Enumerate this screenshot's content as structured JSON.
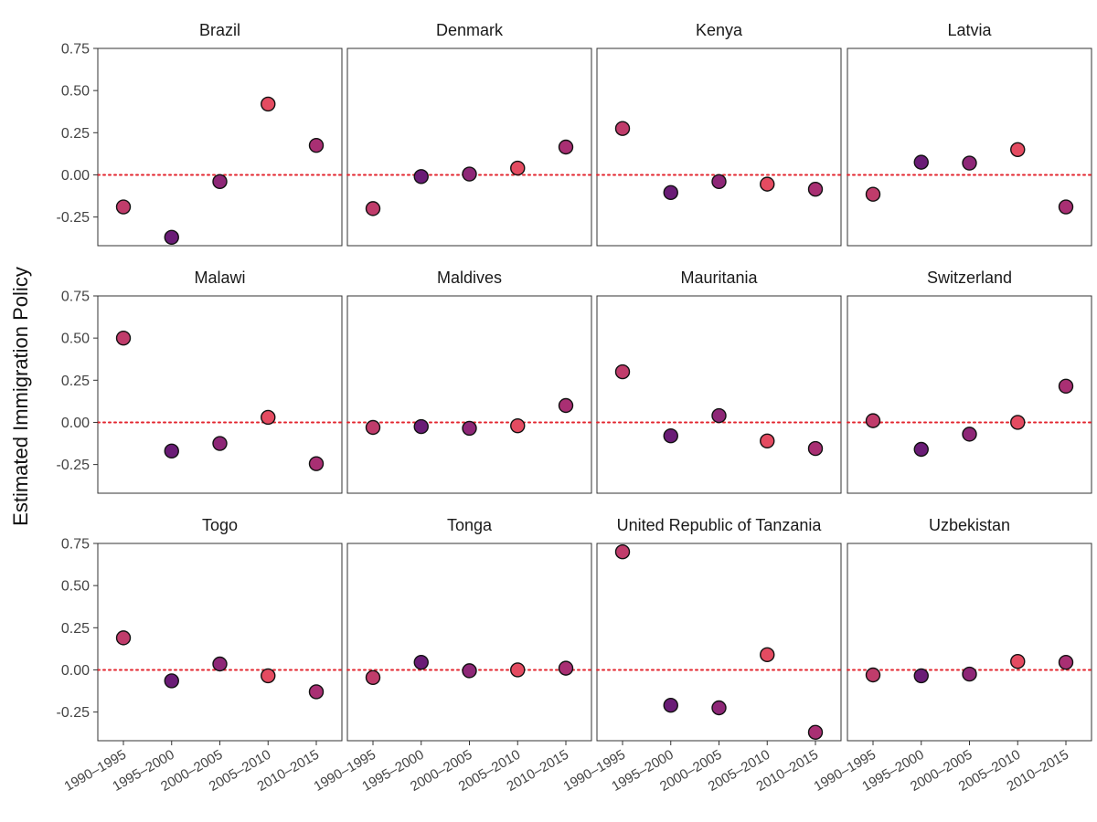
{
  "chart_data": {
    "type": "scatter",
    "ylabel": "Estimated Immigration Policy",
    "xlabel": "",
    "categories": [
      "1990–1995",
      "1995–2000",
      "2000–2005",
      "2005–2010",
      "2010–2015"
    ],
    "y_ticks": [
      0.75,
      0.5,
      0.25,
      0.0,
      -0.25
    ],
    "y_tick_labels": [
      "0.75",
      "0.50",
      "0.25",
      "0.00",
      "-0.25"
    ],
    "ylim": [
      -0.42,
      0.75
    ],
    "reference_line": {
      "y": 0,
      "style": "dotted",
      "color": "#e3262f"
    },
    "grid": false,
    "layout": {
      "rows": 3,
      "cols": 4
    },
    "point_colors": [
      "#c03c6b",
      "#6a1c76",
      "#8e2777",
      "#e44b61",
      "#a92f73"
    ],
    "panels": [
      {
        "title": "Brazil",
        "values": [
          -0.19,
          -0.37,
          -0.04,
          0.42,
          0.175
        ]
      },
      {
        "title": "Denmark",
        "values": [
          -0.2,
          -0.01,
          0.005,
          0.04,
          0.165
        ]
      },
      {
        "title": "Kenya",
        "values": [
          0.275,
          -0.105,
          -0.04,
          -0.055,
          -0.085
        ]
      },
      {
        "title": "Latvia",
        "values": [
          -0.115,
          0.075,
          0.07,
          0.15,
          -0.19
        ]
      },
      {
        "title": "Malawi",
        "values": [
          0.5,
          -0.17,
          -0.125,
          0.03,
          -0.245
        ]
      },
      {
        "title": "Maldives",
        "values": [
          -0.03,
          -0.025,
          -0.035,
          -0.02,
          0.1
        ]
      },
      {
        "title": "Mauritania",
        "values": [
          0.3,
          -0.08,
          0.04,
          -0.11,
          -0.155
        ]
      },
      {
        "title": "Switzerland",
        "values": [
          0.01,
          -0.16,
          -0.07,
          0.0,
          0.215
        ]
      },
      {
        "title": "Togo",
        "values": [
          0.19,
          -0.065,
          0.035,
          -0.035,
          -0.13
        ]
      },
      {
        "title": "Tonga",
        "values": [
          -0.045,
          0.045,
          -0.005,
          0.0,
          0.01
        ]
      },
      {
        "title": "United Republic of Tanzania",
        "values": [
          0.7,
          -0.21,
          -0.225,
          0.09,
          -0.37
        ]
      },
      {
        "title": "Uzbekistan",
        "values": [
          -0.03,
          -0.035,
          -0.025,
          0.05,
          0.045
        ]
      }
    ]
  }
}
